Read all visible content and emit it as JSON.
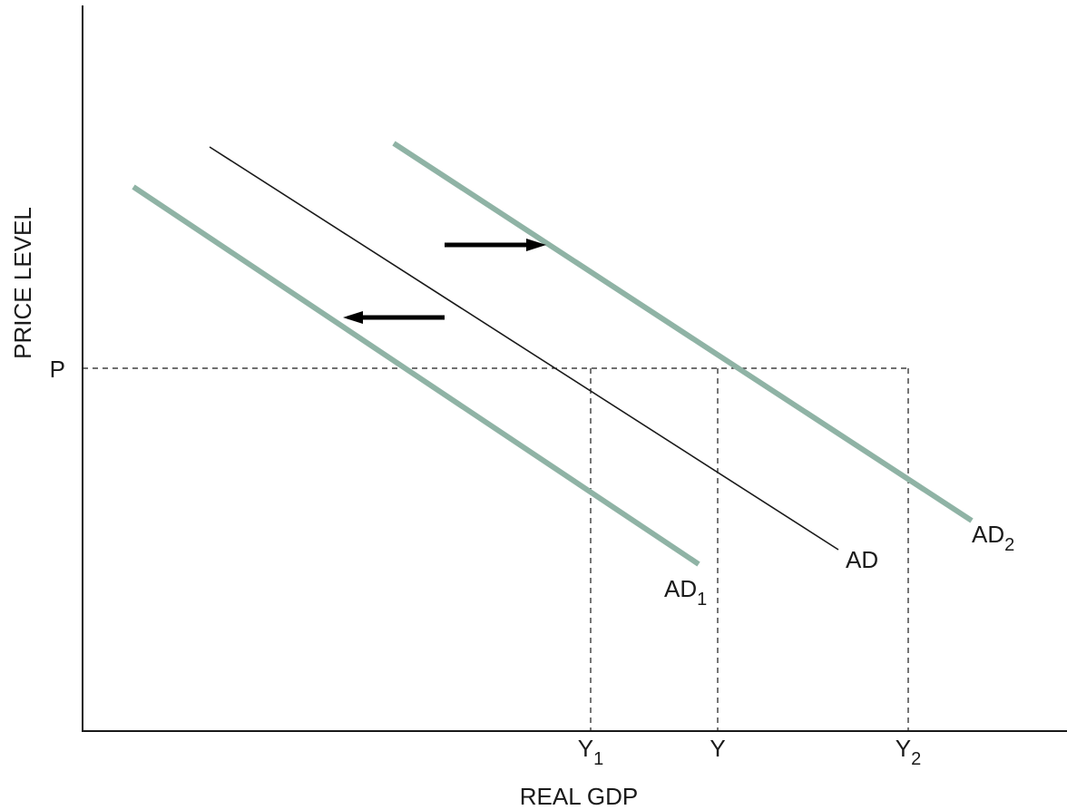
{
  "chart_data": {
    "type": "line",
    "title": "",
    "xlabel": "REAL GDP",
    "ylabel": "PRICE LEVEL",
    "x_ticks": [
      {
        "main": "Y",
        "sub": "1",
        "value": 0.8
      },
      {
        "main": "Y",
        "sub": "",
        "value": 1.0
      },
      {
        "main": "Y",
        "sub": "2",
        "value": 1.3
      }
    ],
    "y_ticks": [
      {
        "main": "P",
        "sub": "",
        "value": 1.0
      }
    ],
    "xlim": [
      0,
      1.55
    ],
    "ylim": [
      0,
      2.0
    ],
    "grid": false,
    "series": [
      {
        "name": "AD",
        "sub": "",
        "color": "#1a1a1a",
        "points": [
          [
            0.2,
            1.61
          ],
          [
            1.19,
            0.5
          ]
        ]
      },
      {
        "name": "AD",
        "sub": "1",
        "color": "#8fb3a5",
        "points": [
          [
            0.08,
            1.5
          ],
          [
            0.97,
            0.46
          ]
        ]
      },
      {
        "name": "AD",
        "sub": "2",
        "color": "#8fb3a5",
        "points": [
          [
            0.49,
            1.62
          ],
          [
            1.4,
            0.58
          ]
        ]
      }
    ],
    "annotations": [
      {
        "type": "arrow",
        "direction": "right",
        "from": [
          0.57,
          1.34
        ],
        "to": [
          0.73,
          1.34
        ]
      },
      {
        "type": "arrow",
        "direction": "left",
        "from": [
          0.57,
          1.14
        ],
        "to": [
          0.41,
          1.14
        ]
      }
    ],
    "reference_lines": [
      {
        "type": "horizontal",
        "y": 1.0,
        "x_to": 1.3
      },
      {
        "type": "vertical",
        "x": 0.8,
        "y_to": 1.0
      },
      {
        "type": "vertical",
        "x": 1.0,
        "y_to": 1.0
      },
      {
        "type": "vertical",
        "x": 1.3,
        "y_to": 1.0
      }
    ]
  }
}
